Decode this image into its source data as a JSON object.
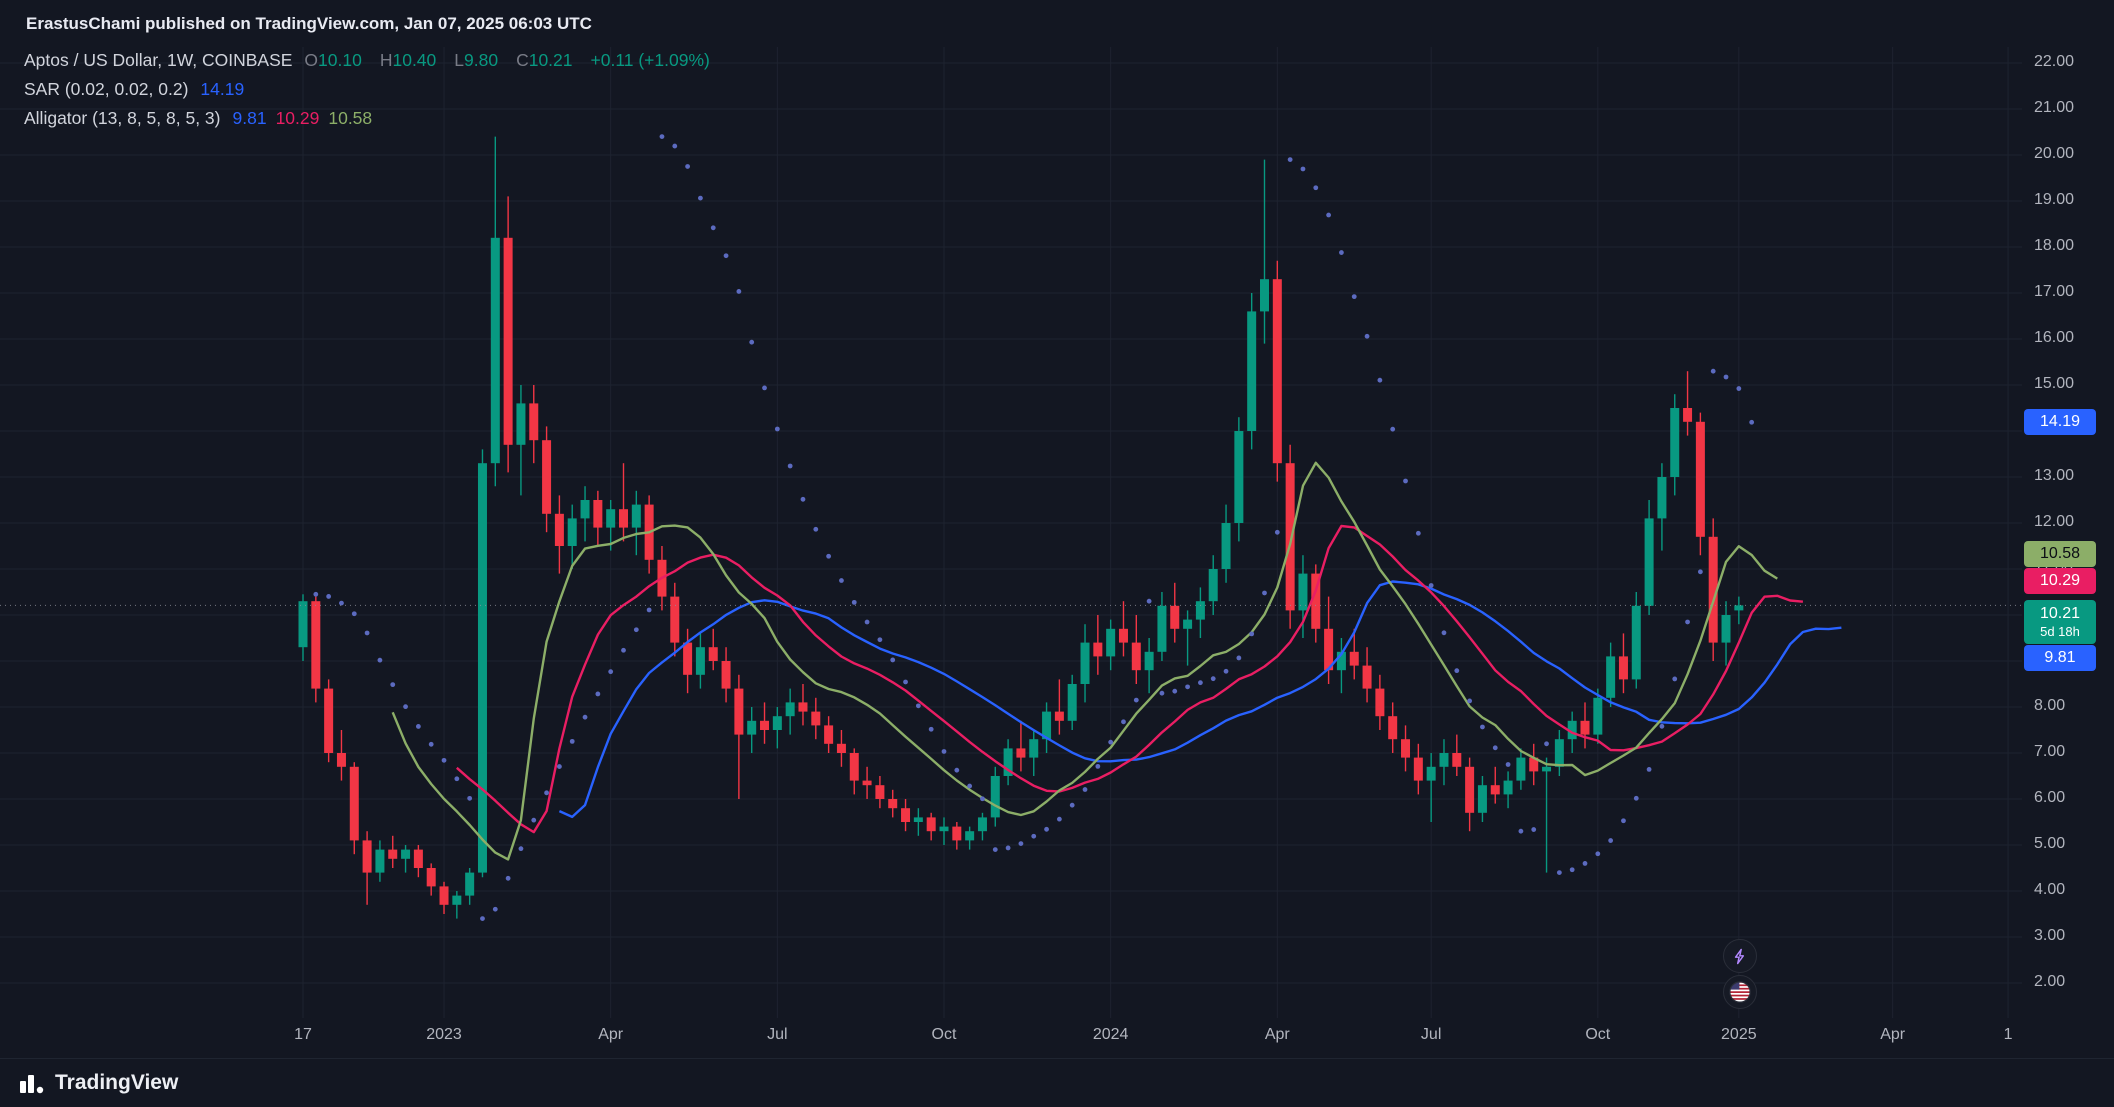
{
  "header": {
    "attribution": "ErastusChami published on TradingView.com, Jan 07, 2025 06:03 UTC"
  },
  "legend": {
    "symbol_row": {
      "title": "Aptos / US Dollar, 1W, COINBASE",
      "ohlc": [
        {
          "label": "O",
          "value": "10.10"
        },
        {
          "label": "H",
          "value": "10.40"
        },
        {
          "label": "L",
          "value": "9.80"
        },
        {
          "label": "C",
          "value": "10.21"
        }
      ],
      "change": "+0.11 (+1.09%)"
    },
    "sar_row": {
      "title": "SAR (0.02, 0.02, 0.2)",
      "value": "14.19"
    },
    "alligator_row": {
      "title": "Alligator (13, 8, 5, 8, 5, 3)",
      "jaw": "9.81",
      "teeth": "10.29",
      "lips": "10.58"
    }
  },
  "price_axis": {
    "ticks": [
      "22.00",
      "21.00",
      "20.00",
      "19.00",
      "18.00",
      "17.00",
      "16.00",
      "15.00",
      "14.00",
      "13.00",
      "12.00",
      "11.00",
      "10.00",
      "9.00",
      "8.00",
      "7.00",
      "6.00",
      "5.00",
      "4.00",
      "3.00",
      "2.00"
    ],
    "badges": [
      {
        "name": "sar-price-badge",
        "text": "14.19",
        "price": 14.19,
        "bg": "#2962ff",
        "fg": "#ffffff"
      },
      {
        "name": "lips-price-badge",
        "text": "10.58",
        "price": 10.58,
        "bg": "#8cae68",
        "fg": "#0c0e15"
      },
      {
        "name": "teeth-price-badge",
        "text": "10.29",
        "price": 10.29,
        "bg": "#e91e63",
        "fg": "#ffffff"
      },
      {
        "name": "last-price-badge",
        "text": "10.21",
        "countdown": "5d 18h",
        "price": 10.21,
        "bg": "#089981",
        "fg": "#ffffff"
      },
      {
        "name": "jaw-price-badge",
        "text": "9.81",
        "price": 9.81,
        "bg": "#2962ff",
        "fg": "#ffffff"
      }
    ]
  },
  "time_axis": {
    "ticks": [
      {
        "label": "17",
        "i": 0
      },
      {
        "label": "2023",
        "i": 11
      },
      {
        "label": "Apr",
        "i": 24
      },
      {
        "label": "Jul",
        "i": 37
      },
      {
        "label": "Oct",
        "i": 50
      },
      {
        "label": "2024",
        "i": 63
      },
      {
        "label": "Apr",
        "i": 76
      },
      {
        "label": "Jul",
        "i": 88
      },
      {
        "label": "Oct",
        "i": 101
      },
      {
        "label": "2025",
        "i": 112
      },
      {
        "label": "Apr",
        "i": 124
      },
      {
        "label": "1",
        "i": 133
      }
    ]
  },
  "footer": {
    "brand": "TradingView"
  },
  "chart_data": {
    "type": "candlestick",
    "title": "Aptos / US Dollar",
    "exchange": "COINBASE",
    "interval": "1W",
    "ylim": [
      2,
      22
    ],
    "grid": true,
    "x_slots": 135,
    "last_price": 10.21,
    "countdown": "5d 18h",
    "colors": {
      "up": "#089981",
      "down": "#f23645",
      "bg": "#131722",
      "grid": "#1e2330",
      "axis_text": "#b2b5be",
      "price_line": "#9598a1"
    },
    "candles": [
      [
        9.3,
        10.45,
        9.0,
        10.3
      ],
      [
        10.3,
        10.4,
        8.1,
        8.4
      ],
      [
        8.4,
        8.6,
        6.8,
        7.0
      ],
      [
        7.0,
        7.5,
        6.4,
        6.7
      ],
      [
        6.7,
        6.8,
        4.8,
        5.1
      ],
      [
        5.1,
        5.3,
        3.7,
        4.4
      ],
      [
        4.4,
        5.1,
        4.2,
        4.9
      ],
      [
        4.9,
        5.2,
        4.5,
        4.7
      ],
      [
        4.7,
        5.0,
        4.4,
        4.9
      ],
      [
        4.9,
        5.0,
        4.3,
        4.5
      ],
      [
        4.5,
        4.6,
        3.9,
        4.1
      ],
      [
        4.1,
        4.2,
        3.5,
        3.7
      ],
      [
        3.7,
        4.0,
        3.4,
        3.9
      ],
      [
        3.9,
        4.5,
        3.7,
        4.4
      ],
      [
        4.4,
        13.6,
        4.3,
        13.3
      ],
      [
        13.3,
        20.4,
        12.8,
        18.2
      ],
      [
        18.2,
        19.1,
        13.1,
        13.7
      ],
      [
        13.7,
        15.0,
        12.6,
        14.6
      ],
      [
        14.6,
        15.0,
        13.3,
        13.8
      ],
      [
        13.8,
        14.1,
        11.8,
        12.2
      ],
      [
        12.2,
        12.6,
        10.9,
        11.5
      ],
      [
        11.5,
        12.4,
        11.0,
        12.1
      ],
      [
        12.1,
        12.8,
        11.6,
        12.5
      ],
      [
        12.5,
        12.7,
        11.5,
        11.9
      ],
      [
        11.9,
        12.5,
        11.4,
        12.3
      ],
      [
        12.3,
        13.3,
        11.6,
        11.9
      ],
      [
        11.9,
        12.7,
        11.3,
        12.4
      ],
      [
        12.4,
        12.6,
        10.9,
        11.2
      ],
      [
        11.2,
        11.5,
        10.1,
        10.4
      ],
      [
        10.4,
        10.7,
        9.1,
        9.4
      ],
      [
        9.4,
        9.7,
        8.3,
        8.7
      ],
      [
        8.7,
        9.6,
        8.4,
        9.3
      ],
      [
        9.3,
        9.7,
        8.8,
        9.0
      ],
      [
        9.0,
        9.3,
        8.1,
        8.4
      ],
      [
        8.4,
        8.7,
        6.0,
        7.4
      ],
      [
        7.4,
        8.0,
        7.0,
        7.7
      ],
      [
        7.7,
        8.1,
        7.2,
        7.5
      ],
      [
        7.5,
        8.0,
        7.1,
        7.8
      ],
      [
        7.8,
        8.4,
        7.4,
        8.1
      ],
      [
        8.1,
        8.5,
        7.6,
        7.9
      ],
      [
        7.9,
        8.2,
        7.3,
        7.6
      ],
      [
        7.6,
        7.8,
        7.0,
        7.2
      ],
      [
        7.2,
        7.5,
        6.7,
        7.0
      ],
      [
        7.0,
        7.1,
        6.1,
        6.4
      ],
      [
        6.4,
        6.7,
        6.0,
        6.3
      ],
      [
        6.3,
        6.5,
        5.8,
        6.0
      ],
      [
        6.0,
        6.2,
        5.6,
        5.8
      ],
      [
        5.8,
        6.0,
        5.3,
        5.5
      ],
      [
        5.5,
        5.8,
        5.2,
        5.6
      ],
      [
        5.6,
        5.7,
        5.1,
        5.3
      ],
      [
        5.3,
        5.6,
        5.0,
        5.4
      ],
      [
        5.4,
        5.5,
        4.9,
        5.1
      ],
      [
        5.1,
        5.4,
        4.9,
        5.3
      ],
      [
        5.3,
        5.7,
        5.1,
        5.6
      ],
      [
        5.6,
        6.7,
        5.4,
        6.5
      ],
      [
        6.5,
        7.3,
        6.3,
        7.1
      ],
      [
        7.1,
        7.7,
        6.6,
        6.9
      ],
      [
        6.9,
        7.5,
        6.5,
        7.3
      ],
      [
        7.3,
        8.1,
        7.0,
        7.9
      ],
      [
        7.9,
        8.6,
        7.4,
        7.7
      ],
      [
        7.7,
        8.7,
        7.5,
        8.5
      ],
      [
        8.5,
        9.8,
        8.1,
        9.4
      ],
      [
        9.4,
        10.0,
        8.7,
        9.1
      ],
      [
        9.1,
        9.9,
        8.8,
        9.7
      ],
      [
        9.7,
        10.3,
        9.1,
        9.4
      ],
      [
        9.4,
        10.0,
        8.5,
        8.8
      ],
      [
        8.8,
        9.5,
        8.3,
        9.2
      ],
      [
        9.2,
        10.5,
        9.0,
        10.2
      ],
      [
        10.2,
        10.7,
        9.4,
        9.7
      ],
      [
        9.7,
        10.1,
        8.9,
        9.9
      ],
      [
        9.9,
        10.6,
        9.5,
        10.3
      ],
      [
        10.3,
        11.3,
        10.0,
        11.0
      ],
      [
        11.0,
        12.4,
        10.7,
        12.0
      ],
      [
        12.0,
        14.3,
        11.6,
        14.0
      ],
      [
        14.0,
        17.0,
        13.6,
        16.6
      ],
      [
        16.6,
        19.9,
        15.9,
        17.3
      ],
      [
        17.3,
        17.7,
        12.9,
        13.3
      ],
      [
        13.3,
        13.7,
        9.7,
        10.1
      ],
      [
        10.1,
        11.3,
        9.5,
        10.9
      ],
      [
        10.9,
        11.1,
        9.4,
        9.7
      ],
      [
        9.7,
        10.4,
        8.5,
        8.8
      ],
      [
        8.8,
        9.5,
        8.3,
        9.2
      ],
      [
        9.2,
        9.7,
        8.6,
        8.9
      ],
      [
        8.9,
        9.3,
        8.1,
        8.4
      ],
      [
        8.4,
        8.7,
        7.5,
        7.8
      ],
      [
        7.8,
        8.1,
        7.0,
        7.3
      ],
      [
        7.3,
        7.6,
        6.6,
        6.9
      ],
      [
        6.9,
        7.2,
        6.1,
        6.4
      ],
      [
        6.4,
        7.0,
        5.5,
        6.7
      ],
      [
        6.7,
        7.3,
        6.3,
        7.0
      ],
      [
        7.0,
        7.4,
        6.5,
        6.7
      ],
      [
        6.7,
        6.9,
        5.3,
        5.7
      ],
      [
        5.7,
        6.5,
        5.5,
        6.3
      ],
      [
        6.3,
        6.7,
        5.9,
        6.1
      ],
      [
        6.1,
        6.6,
        5.8,
        6.4
      ],
      [
        6.4,
        7.1,
        6.2,
        6.9
      ],
      [
        6.9,
        7.2,
        6.3,
        6.6
      ],
      [
        6.6,
        6.9,
        4.4,
        6.7
      ],
      [
        6.7,
        7.5,
        6.5,
        7.3
      ],
      [
        7.3,
        7.9,
        7.0,
        7.7
      ],
      [
        7.7,
        8.1,
        7.1,
        7.4
      ],
      [
        7.4,
        8.4,
        7.2,
        8.2
      ],
      [
        8.2,
        9.4,
        8.0,
        9.1
      ],
      [
        9.1,
        9.6,
        8.3,
        8.6
      ],
      [
        8.6,
        10.5,
        8.4,
        10.2
      ],
      [
        10.2,
        12.5,
        10.0,
        12.1
      ],
      [
        12.1,
        13.3,
        11.4,
        13.0
      ],
      [
        13.0,
        14.8,
        12.6,
        14.5
      ],
      [
        14.5,
        15.3,
        13.9,
        14.2
      ],
      [
        14.2,
        14.4,
        11.3,
        11.7
      ],
      [
        11.7,
        12.1,
        9.0,
        9.4
      ],
      [
        9.4,
        10.3,
        8.9,
        10.0
      ],
      [
        10.1,
        10.4,
        9.8,
        10.21
      ]
    ],
    "indicators": {
      "sar": {
        "label": "SAR",
        "params": [
          0.02,
          0.02,
          0.2
        ],
        "last": 14.19,
        "color": "#2962ff",
        "dot_color": "#5c6bc0"
      },
      "alligator": {
        "label": "Alligator",
        "params": [
          13,
          8,
          5,
          8,
          5,
          3
        ],
        "jaw": {
          "length": 13,
          "offset": 8,
          "last": 9.81,
          "color": "#2962ff"
        },
        "teeth": {
          "length": 8,
          "offset": 5,
          "last": 10.29,
          "color": "#e91e63"
        },
        "lips": {
          "length": 5,
          "offset": 3,
          "last": 10.58,
          "color": "#8cae68"
        }
      }
    }
  }
}
